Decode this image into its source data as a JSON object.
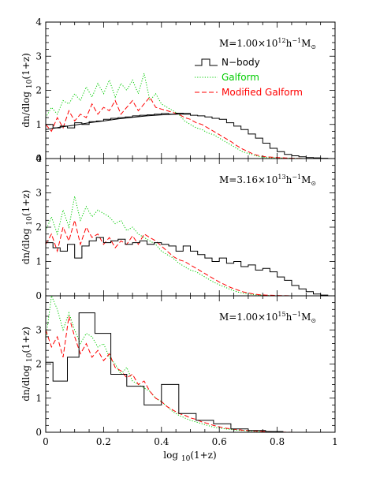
{
  "chart_data": {
    "type": "line",
    "xlabel_prefix": "log ",
    "xlabel_sub": "10",
    "xlabel_suffix": "(1+z)",
    "ylabel_prefix": "dn/dlog ",
    "ylabel_sub": "10",
    "ylabel_suffix": "(1+z)",
    "xlim": [
      0,
      1
    ],
    "x_ticks": [
      0,
      0.2,
      0.4,
      0.6,
      0.8,
      1
    ],
    "x_tick_labels": [
      "0",
      "0.2",
      "0.4",
      "0.6",
      "0.8",
      "1"
    ],
    "legend": {
      "placement": "top-right",
      "entries": [
        {
          "label": "N−body",
          "color": "#000000",
          "style": "step"
        },
        {
          "label": "Galform",
          "color": "#00cc00",
          "style": "dotted"
        },
        {
          "label": "Modified Galform",
          "color": "#ff0000",
          "style": "dashed"
        }
      ]
    },
    "panels": [
      {
        "label_prefix": "M=1.00×10",
        "label_exp": "12",
        "label_unit": "h",
        "label_unit_exp": "−1",
        "label_msun": "M",
        "label_msun_sub": "⊙",
        "ylim": [
          0,
          4
        ],
        "y_ticks": [
          0,
          1,
          2,
          3,
          4
        ],
        "y_tick_labels": [
          "0",
          "1",
          "2",
          "3",
          "4"
        ],
        "nbody_step": 0.025,
        "nbody": [
          1.0,
          0.9,
          0.95,
          0.9,
          1.05,
          1.0,
          1.08,
          1.1,
          1.15,
          1.18,
          1.2,
          1.22,
          1.25,
          1.27,
          1.28,
          1.3,
          1.32,
          1.3,
          1.33,
          1.32,
          1.27,
          1.25,
          1.22,
          1.18,
          1.15,
          1.05,
          0.95,
          0.85,
          0.72,
          0.6,
          0.45,
          0.3,
          0.2,
          0.12,
          0.08,
          0.05,
          0.03,
          0.02,
          0.01,
          0.0
        ],
        "nbody_smooth_x": [
          0.0,
          0.05,
          0.1,
          0.15,
          0.2,
          0.25,
          0.3,
          0.35,
          0.4,
          0.45,
          0.5
        ],
        "nbody_smooth_y": [
          0.85,
          0.92,
          0.98,
          1.05,
          1.1,
          1.16,
          1.21,
          1.25,
          1.28,
          1.3,
          1.3
        ],
        "galform_x": [
          0.0,
          0.02,
          0.04,
          0.06,
          0.08,
          0.1,
          0.12,
          0.14,
          0.16,
          0.18,
          0.2,
          0.22,
          0.24,
          0.26,
          0.28,
          0.3,
          0.32,
          0.34,
          0.36,
          0.38,
          0.4,
          0.42,
          0.44,
          0.46,
          0.48,
          0.5,
          0.52,
          0.54,
          0.56,
          0.58,
          0.6,
          0.62,
          0.64,
          0.66,
          0.68,
          0.7,
          0.72,
          0.74,
          0.76,
          0.8,
          0.85,
          0.9
        ],
        "galform_y": [
          1.2,
          1.5,
          1.3,
          1.7,
          1.6,
          1.9,
          1.7,
          2.1,
          1.8,
          2.2,
          1.9,
          2.3,
          1.8,
          2.2,
          2.0,
          2.3,
          1.9,
          2.5,
          1.7,
          1.9,
          1.6,
          1.5,
          1.4,
          1.3,
          1.1,
          1.0,
          0.9,
          0.85,
          0.75,
          0.7,
          0.6,
          0.5,
          0.4,
          0.3,
          0.2,
          0.15,
          0.1,
          0.05,
          0.03,
          0.02,
          0.01,
          0.0
        ],
        "modgal_x": [
          0.0,
          0.02,
          0.04,
          0.06,
          0.08,
          0.1,
          0.12,
          0.14,
          0.16,
          0.18,
          0.2,
          0.22,
          0.24,
          0.26,
          0.28,
          0.3,
          0.32,
          0.34,
          0.36,
          0.38,
          0.4,
          0.42,
          0.44,
          0.46,
          0.48,
          0.5,
          0.52,
          0.54,
          0.56,
          0.58,
          0.6,
          0.62,
          0.64,
          0.66,
          0.68,
          0.7,
          0.72,
          0.74,
          0.76,
          0.8,
          0.85,
          0.9
        ],
        "modgal_y": [
          1.0,
          0.8,
          1.2,
          0.9,
          1.4,
          1.1,
          1.3,
          1.2,
          1.6,
          1.3,
          1.5,
          1.4,
          1.7,
          1.3,
          1.5,
          1.7,
          1.4,
          1.6,
          1.8,
          1.5,
          1.45,
          1.4,
          1.35,
          1.3,
          1.2,
          1.15,
          1.05,
          1.0,
          0.9,
          0.8,
          0.7,
          0.6,
          0.5,
          0.38,
          0.28,
          0.2,
          0.12,
          0.08,
          0.05,
          0.03,
          0.01,
          0.0
        ]
      },
      {
        "label_prefix": "M=3.16×10",
        "label_exp": "13",
        "label_unit": "h",
        "label_unit_exp": "−1",
        "label_msun": "M",
        "label_msun_sub": "⊙",
        "ylim": [
          0,
          4
        ],
        "y_ticks": [
          0,
          1,
          2,
          3,
          4
        ],
        "y_tick_labels": [
          "0",
          "1",
          "2",
          "3",
          "4"
        ],
        "nbody_step": 0.025,
        "nbody": [
          1.55,
          1.4,
          1.3,
          1.5,
          1.1,
          1.45,
          1.6,
          1.7,
          1.55,
          1.6,
          1.65,
          1.5,
          1.55,
          1.6,
          1.5,
          1.55,
          1.5,
          1.45,
          1.3,
          1.45,
          1.3,
          1.2,
          1.1,
          1.0,
          1.1,
          0.95,
          1.0,
          0.85,
          0.9,
          0.75,
          0.8,
          0.7,
          0.55,
          0.45,
          0.3,
          0.2,
          0.12,
          0.05,
          0.02,
          0.0
        ],
        "galform_x": [
          0.0,
          0.02,
          0.04,
          0.06,
          0.08,
          0.1,
          0.12,
          0.14,
          0.16,
          0.18,
          0.2,
          0.22,
          0.24,
          0.26,
          0.28,
          0.3,
          0.32,
          0.34,
          0.36,
          0.38,
          0.4,
          0.42,
          0.44,
          0.46,
          0.48,
          0.5,
          0.52,
          0.54,
          0.56,
          0.58,
          0.6,
          0.62,
          0.64,
          0.66,
          0.68,
          0.7,
          0.72,
          0.74,
          0.76,
          0.8,
          0.85,
          0.9
        ],
        "galform_y": [
          1.9,
          2.3,
          1.8,
          2.5,
          2.0,
          2.9,
          2.2,
          2.6,
          2.3,
          2.5,
          2.4,
          2.3,
          2.1,
          2.2,
          1.9,
          2.0,
          1.8,
          1.7,
          1.6,
          1.5,
          1.3,
          1.2,
          1.1,
          0.95,
          0.85,
          0.75,
          0.7,
          0.6,
          0.5,
          0.4,
          0.32,
          0.25,
          0.18,
          0.12,
          0.08,
          0.05,
          0.03,
          0.02,
          0.01,
          0.0,
          0.0,
          0.0
        ],
        "modgal_x": [
          0.0,
          0.02,
          0.04,
          0.06,
          0.08,
          0.1,
          0.12,
          0.14,
          0.16,
          0.18,
          0.2,
          0.22,
          0.24,
          0.26,
          0.28,
          0.3,
          0.32,
          0.34,
          0.36,
          0.38,
          0.4,
          0.42,
          0.44,
          0.46,
          0.48,
          0.5,
          0.52,
          0.54,
          0.56,
          0.58,
          0.6,
          0.62,
          0.64,
          0.66,
          0.68,
          0.7,
          0.72,
          0.74,
          0.76,
          0.8,
          0.85,
          0.9
        ],
        "modgal_y": [
          1.5,
          1.8,
          1.3,
          2.0,
          1.6,
          2.2,
          1.5,
          2.0,
          1.7,
          1.8,
          1.5,
          1.7,
          1.4,
          1.6,
          1.5,
          1.75,
          1.5,
          1.8,
          1.7,
          1.6,
          1.45,
          1.3,
          1.15,
          1.05,
          1.0,
          0.9,
          0.8,
          0.7,
          0.6,
          0.5,
          0.4,
          0.32,
          0.24,
          0.18,
          0.12,
          0.08,
          0.05,
          0.03,
          0.02,
          0.01,
          0.0,
          0.0
        ]
      },
      {
        "label_prefix": "M=1.00×10",
        "label_exp": "15",
        "label_unit": "h",
        "label_unit_exp": "−1",
        "label_msun": "M",
        "label_msun_sub": "⊙",
        "ylim": [
          0,
          4
        ],
        "y_ticks": [
          0,
          1,
          2,
          3
        ],
        "y_tick_labels": [
          "0",
          "1",
          "2",
          "3"
        ],
        "nbody_edges": [
          0.0,
          0.025,
          0.075,
          0.115,
          0.17,
          0.225,
          0.28,
          0.34,
          0.4,
          0.46,
          0.52,
          0.58,
          0.64,
          0.7,
          0.76,
          0.82,
          0.88,
          0.94,
          1.0
        ],
        "nbody_hist": [
          2.05,
          1.5,
          2.2,
          3.5,
          2.9,
          1.7,
          1.35,
          0.8,
          1.4,
          0.55,
          0.35,
          0.25,
          0.1,
          0.05,
          0.02,
          0.0,
          0.0,
          0.0
        ],
        "galform_x": [
          0.0,
          0.02,
          0.04,
          0.06,
          0.08,
          0.1,
          0.12,
          0.14,
          0.16,
          0.18,
          0.2,
          0.22,
          0.24,
          0.26,
          0.28,
          0.3,
          0.32,
          0.34,
          0.36,
          0.38,
          0.4,
          0.42,
          0.44,
          0.46,
          0.48,
          0.5,
          0.52,
          0.54,
          0.56,
          0.58,
          0.6,
          0.62,
          0.64,
          0.66,
          0.68,
          0.7,
          0.72,
          0.74,
          0.76,
          0.8,
          0.85,
          0.9
        ],
        "galform_y": [
          2.7,
          4.0,
          3.6,
          3.0,
          3.5,
          3.0,
          2.6,
          2.9,
          2.8,
          2.5,
          2.6,
          2.2,
          2.0,
          1.7,
          1.9,
          1.5,
          1.4,
          1.3,
          1.2,
          1.0,
          0.9,
          0.75,
          0.6,
          0.5,
          0.42,
          0.35,
          0.3,
          0.25,
          0.2,
          0.15,
          0.12,
          0.1,
          0.08,
          0.06,
          0.05,
          0.04,
          0.03,
          0.02,
          0.01,
          0.0,
          0.0,
          0.0
        ],
        "modgal_x": [
          0.0,
          0.02,
          0.04,
          0.06,
          0.08,
          0.1,
          0.12,
          0.14,
          0.16,
          0.18,
          0.2,
          0.22,
          0.24,
          0.26,
          0.28,
          0.3,
          0.32,
          0.34,
          0.36,
          0.38,
          0.4,
          0.42,
          0.44,
          0.46,
          0.48,
          0.5,
          0.52,
          0.54,
          0.56,
          0.58,
          0.6,
          0.62,
          0.64,
          0.66,
          0.68,
          0.7,
          0.72,
          0.74,
          0.76,
          0.8,
          0.85,
          0.9
        ],
        "modgal_y": [
          3.0,
          2.5,
          2.8,
          2.2,
          3.4,
          2.8,
          2.3,
          2.6,
          2.2,
          2.4,
          2.1,
          2.3,
          1.9,
          1.8,
          1.6,
          1.7,
          1.4,
          1.5,
          1.2,
          1.0,
          0.9,
          0.75,
          0.65,
          0.55,
          0.5,
          0.42,
          0.38,
          0.3,
          0.26,
          0.2,
          0.16,
          0.12,
          0.1,
          0.08,
          0.06,
          0.05,
          0.04,
          0.03,
          0.02,
          0.01,
          0.0,
          0.0
        ]
      }
    ]
  }
}
